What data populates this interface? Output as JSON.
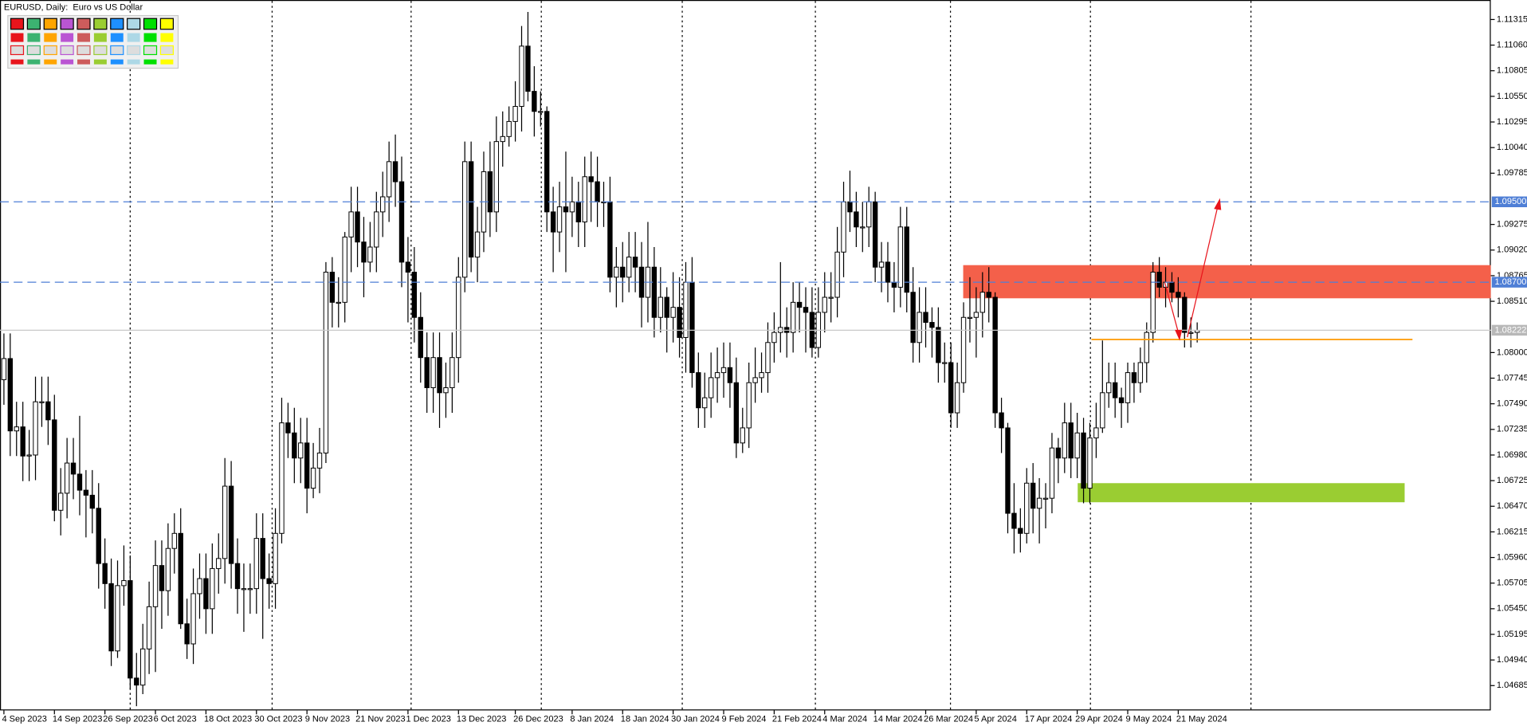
{
  "chart_data": {
    "type": "candlestick",
    "title": "EURUSD, Daily:  Euro vs US Dollar",
    "categories": [
      "4 Sep 2023",
      null,
      null,
      null,
      null,
      null,
      null,
      null,
      "14 Sep 2023",
      null,
      null,
      null,
      null,
      null,
      null,
      null,
      "26 Sep 2023",
      null,
      null,
      null,
      null,
      null,
      null,
      null,
      "6 Oct 2023",
      null,
      null,
      null,
      null,
      null,
      null,
      null,
      "18 Oct 2023",
      null,
      null,
      null,
      null,
      null,
      null,
      null,
      "30 Oct 2023",
      null,
      null,
      null,
      null,
      null,
      null,
      null,
      "9 Nov 2023",
      null,
      null,
      null,
      null,
      null,
      null,
      null,
      "21 Nov 2023",
      null,
      null,
      null,
      null,
      null,
      null,
      null,
      "1 Dec 2023",
      null,
      null,
      null,
      null,
      null,
      null,
      null,
      "13 Dec 2023",
      null,
      null,
      null,
      null,
      null,
      null,
      null,
      null,
      "26 Dec 2023",
      null,
      null,
      null,
      null,
      null,
      null,
      null,
      null,
      "8 Jan 2024",
      null,
      null,
      null,
      null,
      null,
      null,
      null,
      "18 Jan 2024",
      null,
      null,
      null,
      null,
      null,
      null,
      null,
      "30 Jan 2024",
      null,
      null,
      null,
      null,
      null,
      null,
      null,
      "9 Feb 2024",
      null,
      null,
      null,
      null,
      null,
      null,
      null,
      "21 Feb 2024",
      null,
      null,
      null,
      null,
      null,
      null,
      null,
      "4 Mar 2024",
      null,
      null,
      null,
      null,
      null,
      null,
      null,
      "14 Mar 2024",
      null,
      null,
      null,
      null,
      null,
      null,
      null,
      "26 Mar 2024",
      null,
      null,
      null,
      null,
      null,
      null,
      null,
      "5 Apr 2024",
      null,
      null,
      null,
      null,
      null,
      null,
      null,
      "17 Apr 2024",
      null,
      null,
      null,
      null,
      null,
      null,
      null,
      "29 Apr 2024",
      null,
      null,
      null,
      null,
      null,
      null,
      null,
      "9 May 2024",
      null,
      null,
      null,
      null,
      null,
      null,
      null,
      "21 May 2024",
      null,
      null,
      null
    ],
    "open": [
      1.0773,
      1.0794,
      1.0722,
      1.0726,
      1.0697,
      1.0698,
      1.0751,
      1.0751,
      1.0733,
      1.0643,
      1.066,
      1.069,
      1.0679,
      1.0663,
      1.0658,
      1.0645,
      1.059,
      1.057,
      1.0503,
      1.0568,
      1.0573,
      1.0476,
      1.0469,
      1.0505,
      1.0547,
      1.0588,
      1.0563,
      1.0605,
      1.062,
      1.053,
      1.051,
      1.056,
      1.0575,
      1.0545,
      1.0585,
      1.0595,
      1.0667,
      1.059,
      1.0565,
      1.0565,
      1.0565,
      1.0615,
      1.0575,
      1.057,
      1.062,
      1.073,
      1.072,
      1.0695,
      1.071,
      1.0665,
      1.0685,
      1.07,
      1.088,
      1.085,
      1.085,
      1.0915,
      1.094,
      1.091,
      1.089,
      1.0905,
      1.094,
      1.0955,
      1.099,
      1.097,
      1.089,
      1.088,
      1.0835,
      1.0795,
      1.0765,
      1.0795,
      1.076,
      1.0765,
      1.0795,
      1.0875,
      1.099,
      1.0895,
      1.092,
      1.098,
      1.094,
      1.101,
      1.1015,
      1.103,
      1.1045,
      1.1105,
      1.106,
      1.104,
      1.104,
      1.094,
      1.092,
      1.0945,
      1.094,
      1.095,
      1.093,
      1.0975,
      1.097,
      1.095,
      1.095,
      1.0875,
      1.0885,
      1.0875,
      1.0895,
      1.0885,
      1.0855,
      1.0885,
      1.0835,
      1.0855,
      1.0835,
      1.0845,
      1.0815,
      1.087,
      1.078,
      1.0745,
      1.0755,
      1.0775,
      1.078,
      1.0785,
      1.077,
      1.071,
      1.0725,
      1.077,
      1.0775,
      1.078,
      1.081,
      1.082,
      1.0825,
      1.082,
      1.085,
      1.0845,
      1.084,
      1.0805,
      1.084,
      1.0855,
      1.0855,
      1.09,
      1.095,
      1.094,
      1.0925,
      1.0925,
      1.095,
      1.0885,
      1.089,
      1.087,
      1.0865,
      1.0925,
      1.086,
      1.081,
      1.084,
      1.083,
      1.0825,
      1.079,
      1.079,
      1.074,
      1.077,
      1.0835,
      1.0835,
      1.084,
      1.086,
      1.0855,
      1.074,
      1.0725,
      1.064,
      1.0625,
      1.062,
      1.067,
      1.0645,
      1.0655,
      1.0655,
      1.0705,
      1.0695,
      1.073,
      1.0695,
      1.072,
      1.0665,
      1.0715,
      1.0725,
      1.076,
      1.077,
      1.0755,
      1.075,
      1.078,
      1.077,
      1.079,
      1.082,
      1.088,
      1.0865,
      1.087,
      1.086,
      1.0855,
      1.082,
      1.082
    ],
    "high": [
      1.0819,
      1.0819,
      1.0751,
      1.0751,
      1.0723,
      1.0776,
      1.0776,
      1.0776,
      1.0758,
      1.0685,
      1.0715,
      1.0715,
      1.0737,
      1.0683,
      1.0683,
      1.067,
      1.0615,
      1.0595,
      1.0593,
      1.0608,
      1.0598,
      1.0501,
      1.053,
      1.0572,
      1.0613,
      1.0613,
      1.063,
      1.064,
      1.0645,
      1.0555,
      1.0585,
      1.06,
      1.06,
      1.061,
      1.062,
      1.0695,
      1.0692,
      1.0615,
      1.059,
      1.059,
      1.064,
      1.064,
      1.06,
      1.0645,
      1.0755,
      1.075,
      1.0745,
      1.0735,
      1.0735,
      1.071,
      1.0725,
      1.089,
      1.0895,
      1.0875,
      1.092,
      1.0965,
      1.0965,
      1.0935,
      1.093,
      1.096,
      1.098,
      1.101,
      1.1017,
      1.0995,
      1.0915,
      1.0905,
      1.086,
      1.082,
      1.082,
      1.082,
      1.079,
      1.082,
      1.0895,
      1.101,
      1.101,
      1.0945,
      1.1,
      1.101,
      1.1035,
      1.104,
      1.1045,
      1.107,
      1.1125,
      1.1139,
      1.1085,
      1.106,
      1.1045,
      1.0965,
      1.097,
      1.1,
      1.0975,
      1.097,
      1.0995,
      1.1,
      1.0995,
      1.097,
      1.0975,
      1.0905,
      1.091,
      1.092,
      1.092,
      1.091,
      1.093,
      1.0905,
      1.0885,
      1.0865,
      1.088,
      1.0875,
      1.089,
      1.0895,
      1.08,
      1.078,
      1.08,
      1.0805,
      1.081,
      1.081,
      1.0795,
      1.0745,
      1.079,
      1.0805,
      1.08,
      1.083,
      1.084,
      1.089,
      1.0845,
      1.087,
      1.087,
      1.0865,
      1.0865,
      1.0865,
      1.088,
      1.088,
      1.0925,
      1.097,
      1.0981,
      1.096,
      1.095,
      1.0965,
      1.096,
      1.091,
      1.091,
      1.089,
      1.0945,
      1.0945,
      1.0885,
      1.0865,
      1.0865,
      1.0845,
      1.0845,
      1.081,
      1.081,
      1.079,
      1.085,
      1.0875,
      1.0865,
      1.088,
      1.0885,
      1.086,
      1.0755,
      1.073,
      1.067,
      1.0645,
      1.0685,
      1.069,
      1.0675,
      1.067,
      1.072,
      1.0715,
      1.075,
      1.075,
      1.074,
      1.0735,
      1.073,
      1.075,
      1.0812,
      1.079,
      1.079,
      1.0765,
      1.079,
      1.079,
      1.0805,
      1.083,
      1.089,
      1.0895,
      1.0885,
      1.088,
      1.0875,
      1.086,
      1.0835,
      1.083
    ],
    "low": [
      1.0748,
      1.0697,
      1.0697,
      1.0672,
      1.0672,
      1.0673,
      1.0726,
      1.0708,
      1.0632,
      1.0618,
      1.0635,
      1.0654,
      1.0638,
      1.0616,
      1.062,
      1.0565,
      1.0545,
      1.0488,
      1.0496,
      1.0548,
      1.0465,
      1.0448,
      1.046,
      1.048,
      1.0482,
      1.0525,
      1.0538,
      1.058,
      1.0525,
      1.0495,
      1.049,
      1.0535,
      1.052,
      1.052,
      1.056,
      1.057,
      1.0565,
      1.054,
      1.0522,
      1.054,
      1.054,
      1.0515,
      1.0545,
      1.0545,
      1.061,
      1.0695,
      1.067,
      1.067,
      1.064,
      1.0655,
      1.066,
      1.069,
      1.0825,
      1.0825,
      1.083,
      1.088,
      1.0885,
      1.0855,
      1.088,
      1.088,
      1.0915,
      1.093,
      1.0945,
      1.0865,
      1.083,
      1.081,
      1.077,
      1.074,
      1.074,
      1.0725,
      1.0735,
      1.074,
      1.077,
      1.086,
      1.088,
      1.087,
      1.09,
      1.0915,
      1.092,
      1.0985,
      1.1005,
      1.101,
      1.102,
      1.105,
      1.1015,
      1.1025,
      1.092,
      1.088,
      1.09,
      1.088,
      1.0915,
      1.0905,
      1.0905,
      1.093,
      1.0925,
      1.0925,
      1.086,
      1.0845,
      1.085,
      1.086,
      1.086,
      1.0825,
      1.083,
      1.0815,
      1.082,
      1.08,
      1.081,
      1.0795,
      1.078,
      1.0765,
      1.0725,
      1.0725,
      1.0735,
      1.075,
      1.0755,
      1.0745,
      1.0695,
      1.07,
      1.0705,
      1.075,
      1.076,
      1.076,
      1.079,
      1.08,
      1.0795,
      1.08,
      1.082,
      1.08,
      1.0795,
      1.0795,
      1.082,
      1.083,
      1.0835,
      1.0875,
      1.092,
      1.0905,
      1.09,
      1.0905,
      1.087,
      1.086,
      1.085,
      1.084,
      1.0845,
      1.084,
      1.079,
      1.079,
      1.0805,
      1.0795,
      1.077,
      1.077,
      1.0725,
      1.0725,
      1.076,
      1.081,
      1.0795,
      1.0815,
      1.083,
      1.0725,
      1.07,
      1.062,
      1.06,
      1.0601,
      1.061,
      1.062,
      1.061,
      1.0625,
      1.064,
      1.067,
      1.068,
      1.0675,
      1.0675,
      1.065,
      1.065,
      1.0695,
      1.072,
      1.0745,
      1.0735,
      1.0725,
      1.073,
      1.075,
      1.076,
      1.077,
      1.081,
      1.0855,
      1.0845,
      1.085,
      1.0835,
      1.0805,
      1.0805,
      1.081
    ],
    "close": [
      1.0794,
      1.0722,
      1.0726,
      1.0697,
      1.0698,
      1.0751,
      1.0751,
      1.0733,
      1.0643,
      1.066,
      1.069,
      1.0679,
      1.0663,
      1.0658,
      1.0645,
      1.059,
      1.057,
      1.0503,
      1.0568,
      1.0573,
      1.0476,
      1.0469,
      1.0505,
      1.0547,
      1.0588,
      1.0563,
      1.0605,
      1.062,
      1.053,
      1.051,
      1.056,
      1.0575,
      1.0545,
      1.0585,
      1.0595,
      1.0667,
      1.059,
      1.0565,
      1.0565,
      1.0565,
      1.0615,
      1.0575,
      1.057,
      1.062,
      1.073,
      1.072,
      1.0695,
      1.071,
      1.0665,
      1.0685,
      1.07,
      1.088,
      1.085,
      1.085,
      1.0915,
      1.094,
      1.091,
      1.089,
      1.0905,
      1.094,
      1.0955,
      1.099,
      1.097,
      1.089,
      1.088,
      1.0835,
      1.0795,
      1.0765,
      1.0795,
      1.076,
      1.0765,
      1.0795,
      1.0875,
      1.099,
      1.0895,
      1.092,
      1.098,
      1.094,
      1.101,
      1.1015,
      1.103,
      1.1045,
      1.1105,
      1.106,
      1.104,
      1.104,
      1.094,
      1.092,
      1.0945,
      1.094,
      1.095,
      1.093,
      1.0975,
      1.097,
      1.095,
      1.095,
      1.0875,
      1.0885,
      1.0875,
      1.0895,
      1.0885,
      1.0855,
      1.0885,
      1.0835,
      1.0855,
      1.0835,
      1.0845,
      1.0815,
      1.087,
      1.078,
      1.0745,
      1.0755,
      1.0775,
      1.078,
      1.0785,
      1.077,
      1.071,
      1.0725,
      1.077,
      1.0775,
      1.078,
      1.081,
      1.082,
      1.0825,
      1.082,
      1.085,
      1.0845,
      1.084,
      1.0805,
      1.084,
      1.0855,
      1.0855,
      1.09,
      1.095,
      1.094,
      1.0925,
      1.0925,
      1.095,
      1.0885,
      1.089,
      1.087,
      1.0865,
      1.0925,
      1.086,
      1.081,
      1.084,
      1.083,
      1.0825,
      1.079,
      1.079,
      1.074,
      1.077,
      1.0835,
      1.0835,
      1.084,
      1.086,
      1.0855,
      1.074,
      1.0725,
      1.064,
      1.0625,
      1.062,
      1.067,
      1.0645,
      1.0655,
      1.0655,
      1.0705,
      1.0695,
      1.073,
      1.0695,
      1.072,
      1.0665,
      1.0715,
      1.0725,
      1.076,
      1.077,
      1.0755,
      1.075,
      1.078,
      1.077,
      1.079,
      1.082,
      1.088,
      1.0865,
      1.087,
      1.086,
      1.0855,
      1.082,
      1.082,
      1.0822
    ],
    "ylim": [
      1.04438,
      1.11509
    ],
    "yticks": [
      1.11315,
      {
        "value": 1.1106,
        "label": "1.11060"
      },
      1.10805,
      {
        "value": 1.1055,
        "label": "1.10550"
      },
      1.10295,
      {
        "value": 1.1004,
        "label": "1.10040"
      },
      1.09785,
      1.09275,
      {
        "value": 1.0902,
        "label": "1.09020"
      },
      1.08765,
      {
        "value": 1.0851,
        "label": "1.08510"
      },
      {
        "value": 1.08,
        "label": "1.08000"
      },
      1.07745,
      {
        "value": 1.0749,
        "label": "1.07490"
      },
      1.07235,
      {
        "value": 1.0698,
        "label": "1.06980"
      },
      1.06725,
      {
        "value": 1.0647,
        "label": "1.06470"
      },
      1.06215,
      {
        "value": 1.0596,
        "label": "1.05960"
      },
      1.05705,
      {
        "value": 1.0545,
        "label": "1.05450"
      },
      1.05195,
      {
        "value": 1.0494,
        "label": "1.04940"
      },
      1.04685
    ],
    "grid": false,
    "levels": [
      {
        "value": 1.095,
        "label": "1.09500",
        "color": "#4f7fd6"
      },
      {
        "value": 1.087,
        "label": "1.08700",
        "color": "#4f7fd6"
      }
    ],
    "current_price": {
      "value": 1.08222,
      "label": "1.08222",
      "color": "#b8b8b8"
    },
    "support_line": {
      "value": 1.0813,
      "color": "#ff9900"
    },
    "zones": [
      {
        "low": 1.0854,
        "high": 1.0887,
        "color": "#f4604a"
      },
      {
        "low": 1.0651,
        "high": 1.067,
        "color": "#9acd32"
      }
    ]
  }
}
